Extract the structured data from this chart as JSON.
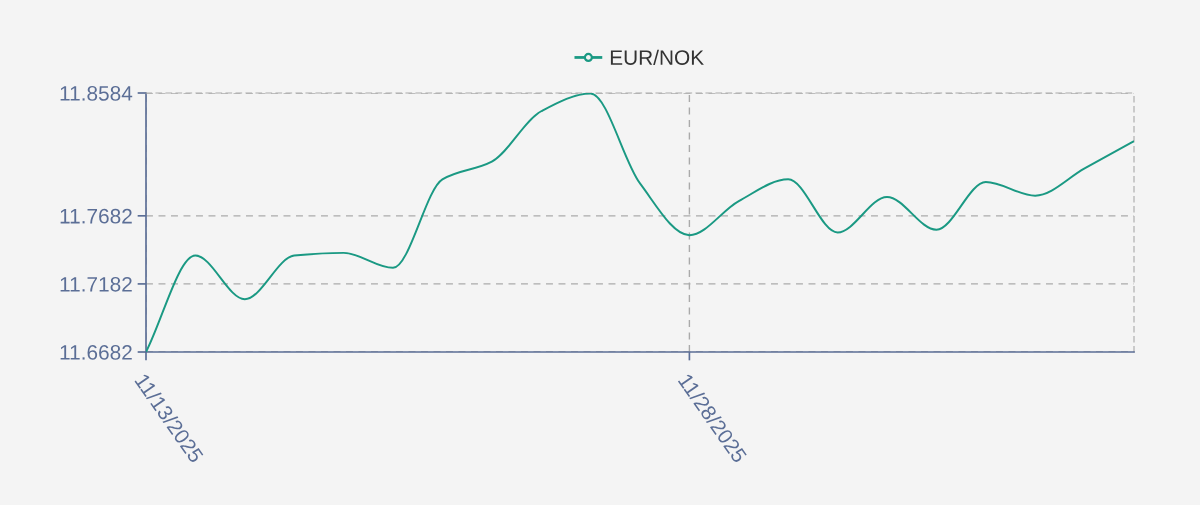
{
  "chart_data": {
    "type": "line",
    "categories": [
      "11/13/2025",
      null,
      null,
      null,
      null,
      null,
      null,
      null,
      null,
      null,
      null,
      "11/28/2025",
      null,
      null,
      null,
      null,
      null,
      null,
      null,
      null,
      null
    ],
    "series": [
      {
        "name": "EUR/NOK",
        "color": "#1a9983",
        "values": [
          11.6682,
          11.739,
          11.707,
          11.739,
          11.741,
          11.73,
          11.795,
          11.808,
          11.845,
          11.858,
          11.792,
          11.754,
          11.779,
          11.795,
          11.756,
          11.782,
          11.758,
          11.793,
          11.783,
          11.803,
          11.823
        ]
      }
    ],
    "ylim": [
      11.6682,
      11.8584
    ],
    "yticks": [
      11.6682,
      11.7182,
      11.7682,
      11.8584
    ],
    "grid": true,
    "legend": "top",
    "line_style": "solid"
  }
}
